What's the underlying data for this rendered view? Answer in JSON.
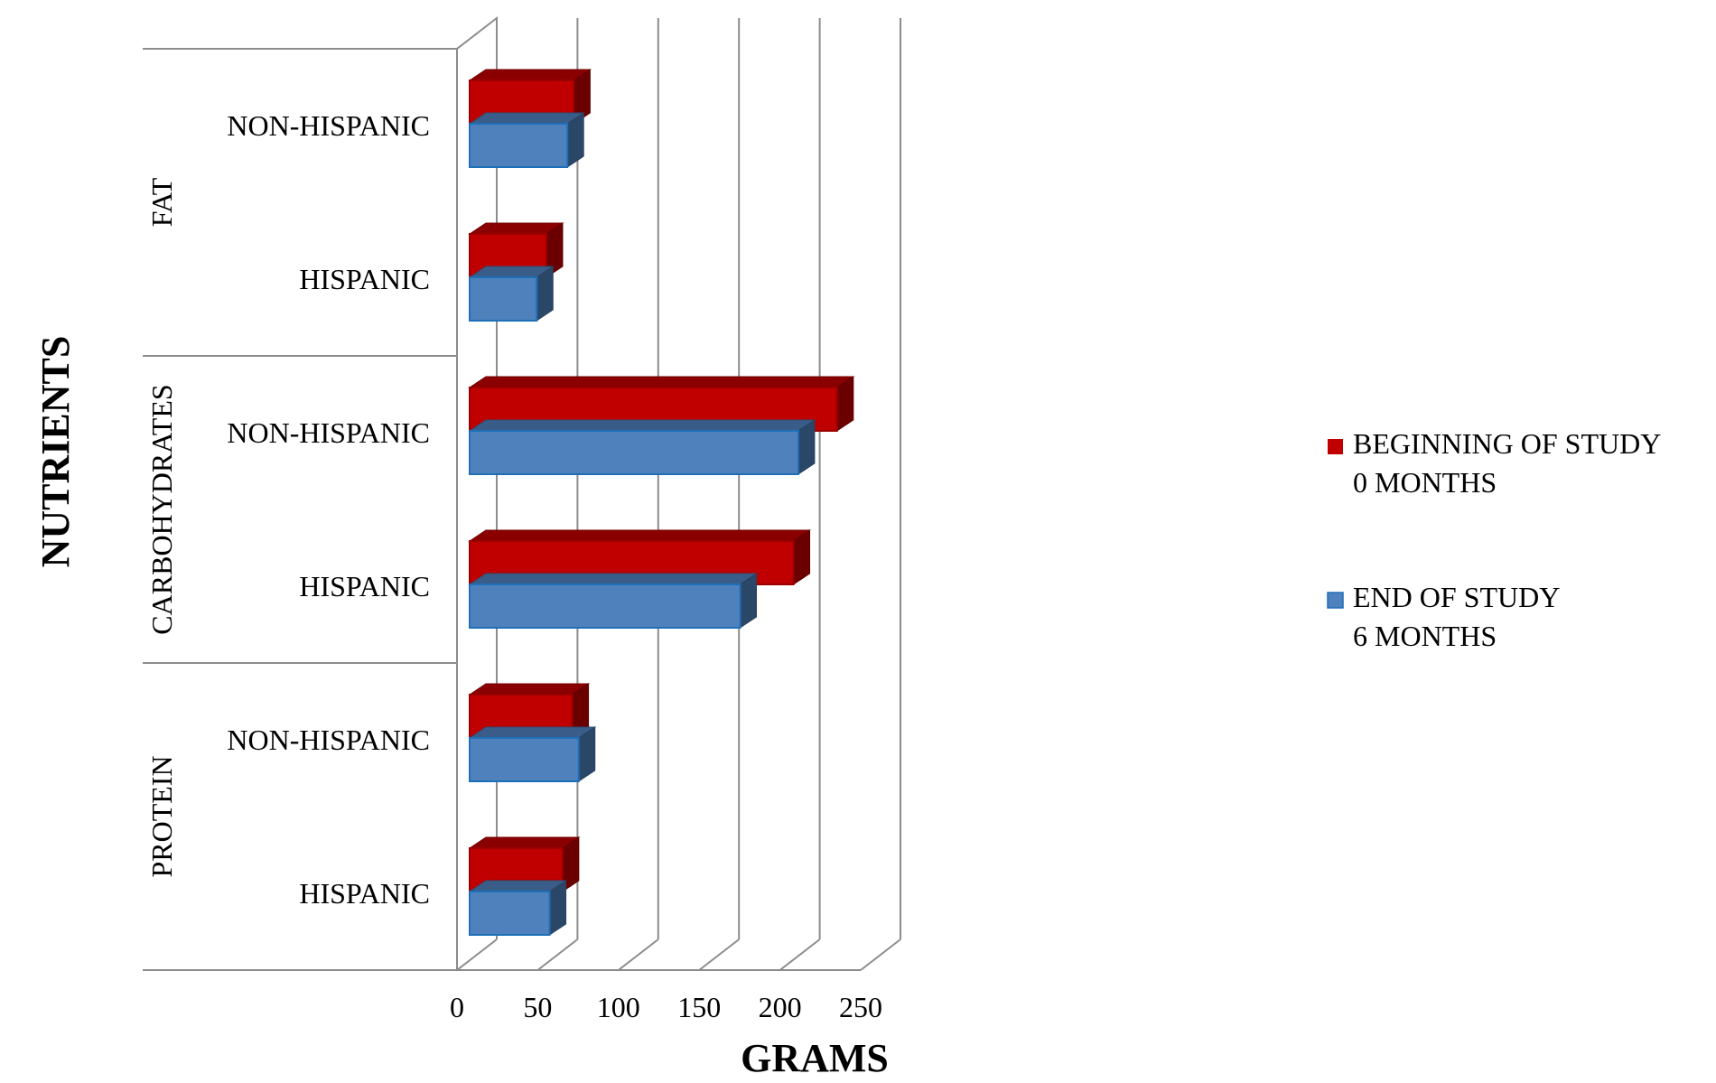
{
  "chart_data": {
    "type": "bar",
    "orientation": "horizontal",
    "three_d": true,
    "title": "",
    "xlabel": "GRAMS",
    "ylabel": "NUTRIENTS",
    "xlim": [
      0,
      250
    ],
    "x_ticks": [
      "0",
      "50",
      "100",
      "150",
      "200",
      "250"
    ],
    "grid": true,
    "legend_position": "right",
    "groups": [
      "FAT",
      "CARBOHYDRATES",
      "PROTEIN"
    ],
    "categories": [
      {
        "group": "FAT",
        "label": "NON-HISPANIC"
      },
      {
        "group": "FAT",
        "label": "HISPANIC"
      },
      {
        "group": "CARBOHYDRATES",
        "label": "NON-HISPANIC"
      },
      {
        "group": "CARBOHYDRATES",
        "label": "HISPANIC"
      },
      {
        "group": "PROTEIN",
        "label": "NON-HISPANIC"
      },
      {
        "group": "PROTEIN",
        "label": "HISPANIC"
      }
    ],
    "series": [
      {
        "name": "BEGINNING OF STUDY 0 MONTHS",
        "legend_lines": [
          "BEGINNING OF STUDY",
          "0 MONTHS"
        ],
        "color": "#C00000",
        "values": [
          69,
          52,
          232,
          205,
          68,
          62
        ]
      },
      {
        "name": "END OF STUDY 6 MONTHS",
        "legend_lines": [
          "END OF STUDY",
          "6 MONTHS"
        ],
        "color": "#4F81BD",
        "values": [
          65,
          46,
          208,
          172,
          72,
          54
        ]
      }
    ]
  }
}
